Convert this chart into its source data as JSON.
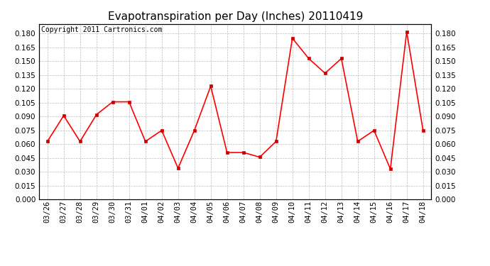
{
  "title": "Evapotranspiration per Day (Inches) 20110419",
  "copyright": "Copyright 2011 Cartronics.com",
  "labels": [
    "03/26",
    "03/27",
    "03/28",
    "03/29",
    "03/30",
    "03/31",
    "04/01",
    "04/02",
    "04/03",
    "04/04",
    "04/05",
    "04/06",
    "04/07",
    "04/08",
    "04/09",
    "04/10",
    "04/11",
    "04/12",
    "04/13",
    "04/14",
    "04/15",
    "04/16",
    "04/17",
    "04/18"
  ],
  "values": [
    0.063,
    0.091,
    0.063,
    0.092,
    0.106,
    0.106,
    0.063,
    0.075,
    0.034,
    0.075,
    0.123,
    0.051,
    0.051,
    0.046,
    0.063,
    0.175,
    0.153,
    0.137,
    0.153,
    0.063,
    0.075,
    0.033,
    0.182,
    0.075
  ],
  "line_color": "#ff0000",
  "marker": "s",
  "marker_color": "#cc0000",
  "marker_size": 3,
  "bg_color": "#ffffff",
  "grid_color": "#bbbbbb",
  "ylim": [
    0.0,
    0.1905
  ],
  "yticks": [
    0.0,
    0.015,
    0.03,
    0.045,
    0.06,
    0.075,
    0.09,
    0.105,
    0.12,
    0.135,
    0.15,
    0.165,
    0.18
  ],
  "title_fontsize": 11,
  "copyright_fontsize": 7,
  "tick_fontsize": 7.5,
  "fig_width": 6.9,
  "fig_height": 3.75,
  "dpi": 100
}
